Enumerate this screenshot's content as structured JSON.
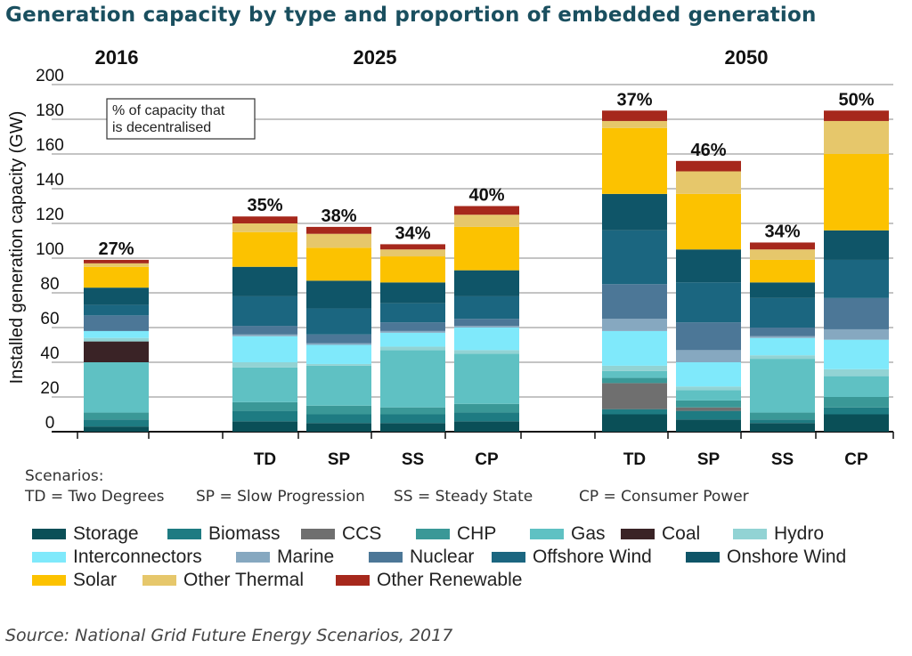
{
  "title": "Generation capacity by type and proportion of embedded generation",
  "scenarios_heading": "Scenarios:",
  "scenario_definitions": [
    "TD = Two Degrees",
    "SP = Slow Progression",
    "SS = Steady State",
    "CP = Consumer Power"
  ],
  "source": "Source: National Grid Future Energy Scenarios, 2017",
  "annotation": "% of capacity that\nis decentralised",
  "colors": {
    "Storage": "#0a4f57",
    "Biomass": "#1e7b82",
    "CCS": "#6f6f6f",
    "CHP": "#3a9897",
    "Gas": "#5fc1c3",
    "Coal": "#3a2326",
    "Hydro": "#92d3d4",
    "Interconnectors": "#7fe9fb",
    "Marine": "#86a8c0",
    "Nuclear": "#4c7797",
    "Offshore Wind": "#1b6680",
    "Onshore Wind": "#0f5568",
    "Solar": "#fcc200",
    "Other Thermal": "#e6c76b",
    "Other Renewable": "#a6281c"
  },
  "chart_data": {
    "type": "bar",
    "stacked": true,
    "ylabel": "Installed generation capacity (GW)",
    "ylim": [
      0,
      200
    ],
    "yticks": [
      0,
      20,
      40,
      60,
      80,
      100,
      120,
      140,
      160,
      180,
      200
    ],
    "grid": true,
    "legend_position": "bottom",
    "groups": [
      {
        "label": "2016",
        "bars": [
          "2016"
        ]
      },
      {
        "label": "2025",
        "bars": [
          "TD",
          "SP",
          "SS",
          "CP"
        ]
      },
      {
        "label": "2050",
        "bars": [
          "TD",
          "SP",
          "SS",
          "CP"
        ]
      }
    ],
    "categories": [
      "2016",
      "2025 TD",
      "2025 SP",
      "2025 SS",
      "2025 CP",
      "2050 TD",
      "2050 SP",
      "2050 SS",
      "2050 CP"
    ],
    "tick_labels": [
      "",
      "TD",
      "SP",
      "SS",
      "CP",
      "TD",
      "SP",
      "SS",
      "CP"
    ],
    "decentralised_pct": [
      "27%",
      "35%",
      "38%",
      "34%",
      "40%",
      "37%",
      "46%",
      "34%",
      "50%"
    ],
    "series": [
      {
        "name": "Storage",
        "values": [
          3,
          6,
          5,
          5,
          6,
          10,
          7,
          5,
          10
        ]
      },
      {
        "name": "Biomass",
        "values": [
          4,
          6,
          5,
          5,
          5,
          3,
          5,
          2,
          4
        ]
      },
      {
        "name": "CCS",
        "values": [
          0,
          0,
          0,
          0,
          0,
          15,
          2,
          0,
          0
        ]
      },
      {
        "name": "CHP",
        "values": [
          4,
          5,
          5,
          4,
          5,
          3,
          4,
          4,
          6
        ]
      },
      {
        "name": "Gas",
        "values": [
          29,
          20,
          23,
          33,
          29,
          4,
          6,
          31,
          12
        ]
      },
      {
        "name": "Coal",
        "values": [
          12,
          0,
          0,
          0,
          0,
          0,
          0,
          0,
          0
        ]
      },
      {
        "name": "Hydro",
        "values": [
          2,
          3,
          1,
          2,
          2,
          3,
          2,
          2,
          4
        ]
      },
      {
        "name": "Interconnectors",
        "values": [
          4,
          15,
          11,
          8,
          13,
          20,
          14,
          10,
          17
        ]
      },
      {
        "name": "Marine",
        "values": [
          0,
          1,
          1,
          1,
          1,
          7,
          7,
          1,
          6
        ]
      },
      {
        "name": "Nuclear",
        "values": [
          9,
          5,
          5,
          5,
          4,
          20,
          16,
          5,
          18
        ]
      },
      {
        "name": "Offshore Wind",
        "values": [
          6,
          17,
          15,
          11,
          13,
          31,
          23,
          17,
          22
        ]
      },
      {
        "name": "Onshore Wind",
        "values": [
          10,
          17,
          16,
          12,
          15,
          21,
          19,
          9,
          17
        ]
      },
      {
        "name": "Solar",
        "values": [
          12,
          20,
          19,
          15,
          25,
          38,
          32,
          13,
          44
        ]
      },
      {
        "name": "Other Thermal",
        "values": [
          2,
          5,
          8,
          4,
          7,
          4,
          13,
          6,
          19
        ]
      },
      {
        "name": "Other Renewable",
        "values": [
          2,
          4,
          4,
          3,
          5,
          6,
          6,
          4,
          6
        ]
      }
    ]
  }
}
